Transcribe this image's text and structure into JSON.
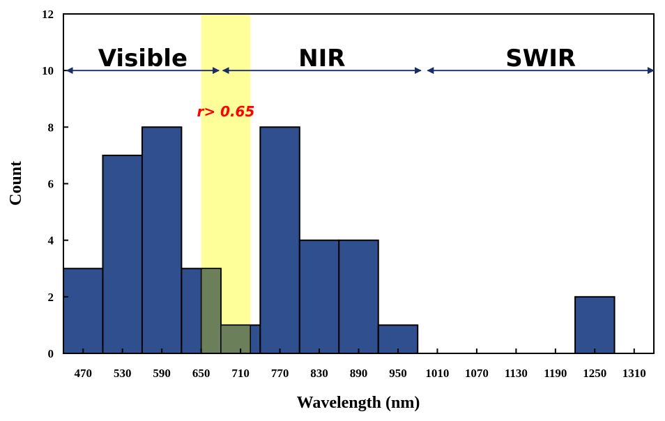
{
  "chart_data": {
    "type": "bar",
    "title": "",
    "xlabel": "Wavelength (nm)",
    "ylabel": "Count",
    "x_categories": [
      "470",
      "530",
      "590",
      "650",
      "710",
      "770",
      "830",
      "890",
      "950",
      "1010",
      "1070",
      "1130",
      "1190",
      "1250",
      "1310"
    ],
    "ylim": [
      0,
      12
    ],
    "y_ticks": [
      "0",
      "2",
      "4",
      "6",
      "8",
      "10",
      "12"
    ],
    "bins": [
      {
        "start": 440,
        "end": 500,
        "count": 3
      },
      {
        "start": 500,
        "end": 560,
        "count": 7
      },
      {
        "start": 560,
        "end": 620,
        "count": 8
      },
      {
        "start": 620,
        "end": 680,
        "count": 3
      },
      {
        "start": 680,
        "end": 740,
        "count": 1
      },
      {
        "start": 740,
        "end": 800,
        "count": 8
      },
      {
        "start": 800,
        "end": 860,
        "count": 4
      },
      {
        "start": 860,
        "end": 920,
        "count": 4
      },
      {
        "start": 920,
        "end": 980,
        "count": 1
      },
      {
        "start": 980,
        "end": 1040,
        "count": 0
      },
      {
        "start": 1040,
        "end": 1100,
        "count": 0
      },
      {
        "start": 1100,
        "end": 1160,
        "count": 0
      },
      {
        "start": 1160,
        "end": 1220,
        "count": 0
      },
      {
        "start": 1220,
        "end": 1280,
        "count": 2
      },
      {
        "start": 1280,
        "end": 1340,
        "count": 0
      }
    ],
    "highlight": {
      "from": 650,
      "to": 725,
      "label": "r> 0.65",
      "color": "#ffff99",
      "label_color": "#ff0000"
    },
    "regions": [
      {
        "label": "Visible",
        "from": 445,
        "to": 677,
        "at": 10
      },
      {
        "label": "NIR",
        "from": 683,
        "to": 985,
        "at": 10
      },
      {
        "label": "SWIR",
        "from": 995,
        "to": 1340,
        "at": 10
      }
    ],
    "colors": {
      "bar": "#2f4f8f",
      "arrow": "#1a2e66",
      "overlap": "#6b7f5a"
    }
  }
}
